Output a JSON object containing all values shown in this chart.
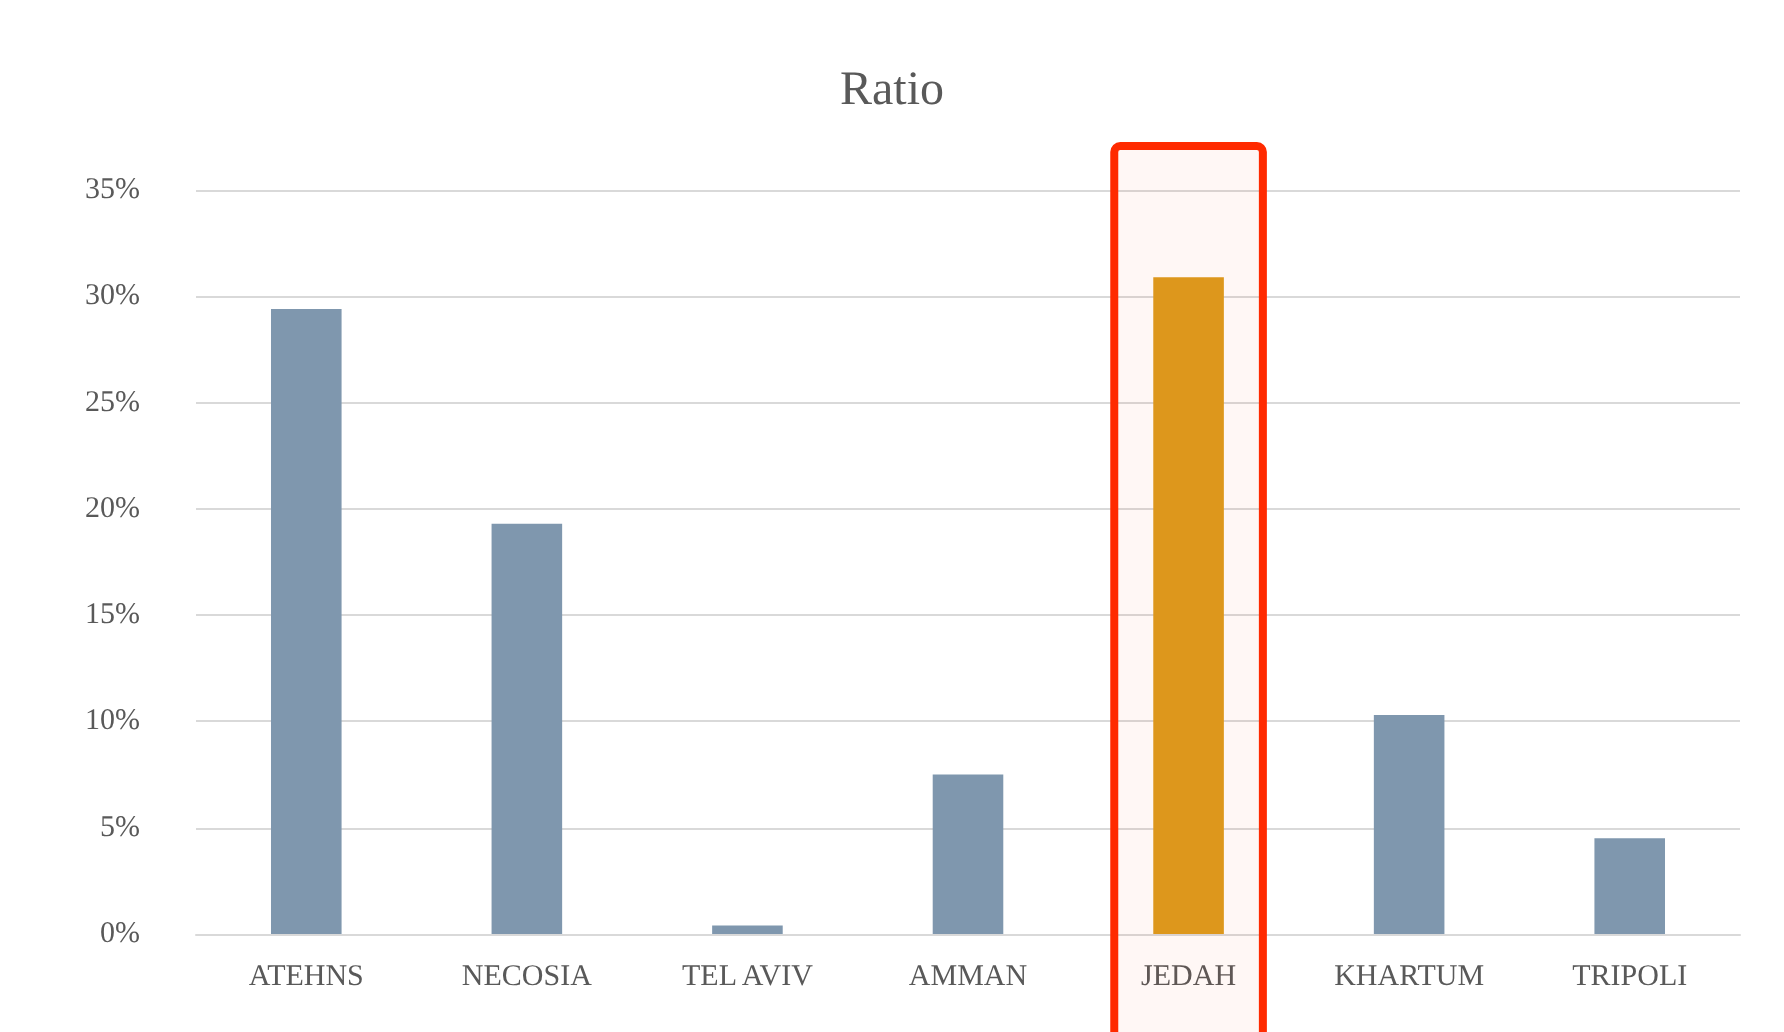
{
  "chart_data": {
    "type": "bar",
    "title": "Ratio",
    "categories": [
      "ATEHNS",
      "NECOSIA",
      "TEL AVIV",
      "AMMAN",
      "JEDAH",
      "KHARTUM",
      "TRIPOLI"
    ],
    "values": [
      29.4,
      19.3,
      0.4,
      7.5,
      30.9,
      10.3,
      4.5
    ],
    "colors": [
      "#7f97ae",
      "#7f97ae",
      "#7f97ae",
      "#7f97ae",
      "#dc9c1e",
      "#7f97ae",
      "#7f97ae"
    ],
    "ylim": [
      0,
      35
    ],
    "yticks": [
      {
        "value": 0,
        "label": "0%"
      },
      {
        "value": 5,
        "label": "5%"
      },
      {
        "value": 10,
        "label": "10%"
      },
      {
        "value": 15,
        "label": "15%"
      },
      {
        "value": 20,
        "label": "20%"
      },
      {
        "value": 25,
        "label": "25%"
      },
      {
        "value": 30,
        "label": "30%"
      },
      {
        "value": 35,
        "label": "35%"
      }
    ],
    "grid": "y",
    "bands": [
      {
        "axis": "x",
        "from": "JEDAH",
        "to": "JEDAH",
        "color": "#ff2a00"
      }
    ]
  }
}
